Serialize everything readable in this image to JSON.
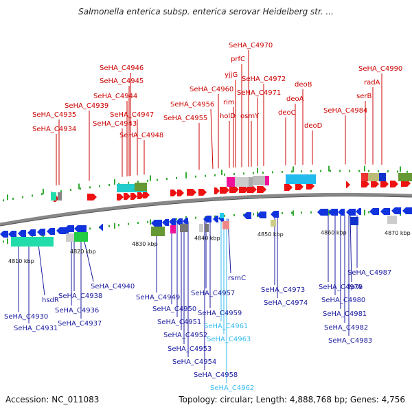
{
  "header": {
    "title": "Salmonella enterica subsp. enterica serovar Heidelberg str. ..."
  },
  "footer": {
    "accession": "Accession: NC_011083",
    "summary": "Topology: circular; Length: 4,888,768 bp; Genes: 4,756"
  },
  "scale": {
    "ticks": [
      "4810 kbp",
      "4820 kbp",
      "4830 kbp",
      "4840 kbp",
      "4850 kbp",
      "4860 kbp",
      "4870 kbp"
    ]
  },
  "colors": {
    "top_label": "#cc0000",
    "bottom_label": "#1a1aa0",
    "highlight_label": "#33bbee",
    "forward_gene": "#ee1111",
    "reverse_gene": "#1133dd",
    "backbone": "#888888",
    "tick": "#22aa22"
  },
  "top_genes": [
    "SeHA_C4946",
    "SeHA_C4945",
    "SeHA_C4944",
    "SeHA_C4939",
    "SeHA_C4947",
    "SeHA_C4935",
    "SeHA_C4943",
    "SeHA_C4934",
    "SeHA_C4948",
    "SeHA_C4970",
    "prfC",
    "yjjG",
    "SeHA_C4972",
    "SeHA_C4960",
    "rimI",
    "SeHA_C4971",
    "SeHA_C4956",
    "holD",
    "osmY",
    "SeHA_C4955",
    "deoB",
    "deoA",
    "deoC",
    "deoD",
    "SeHA_C4990",
    "radA",
    "serB",
    "SeHA_C4984"
  ],
  "bottom_genes": [
    "SeHA_C4940",
    "SeHA_C4938",
    "hsdR",
    "SeHA_C4936",
    "SeHA_C4937",
    "SeHA_C4930",
    "SeHA_C4931",
    "SeHA_C4949",
    "SeHA_C4957",
    "SeHA_C4950",
    "SeHA_C4959",
    "SeHA_C4951",
    "SeHA_C4961",
    "SeHA_C4952",
    "SeHA_C4963",
    "SeHA_C4953",
    "SeHA_C4954",
    "SeHA_C4958",
    "SeHA_C4962",
    "rsmC",
    "SeHA_C4973",
    "SeHA_C4974",
    "SeHA_C4987",
    "SeHA_C4979",
    "lplA",
    "SeHA_C4980",
    "SeHA_C4981",
    "SeHA_C4982",
    "SeHA_C4983"
  ]
}
